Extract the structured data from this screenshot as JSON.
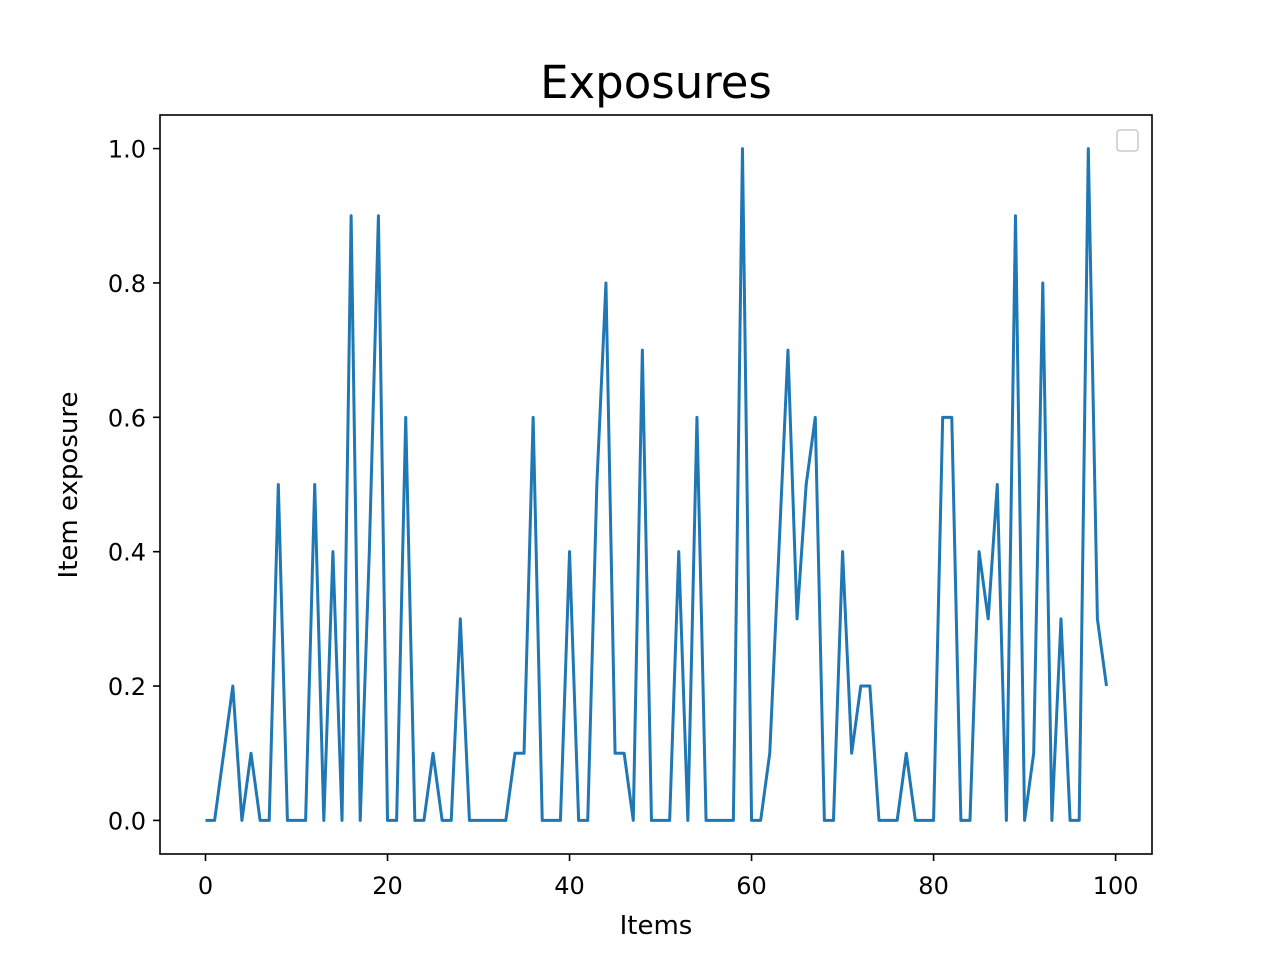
{
  "chart_data": {
    "type": "line",
    "title": "Exposures",
    "xlabel": "Items",
    "ylabel": "Item exposure",
    "xlim": [
      -5,
      104
    ],
    "ylim": [
      -0.05,
      1.05
    ],
    "xticks": [
      0,
      20,
      40,
      60,
      80,
      100
    ],
    "yticks": [
      0.0,
      0.2,
      0.4,
      0.6,
      0.8,
      1.0
    ],
    "xtick_labels": [
      "0",
      "20",
      "40",
      "60",
      "80",
      "100"
    ],
    "ytick_labels": [
      "0.0",
      "0.2",
      "0.4",
      "0.6",
      "0.8",
      "1.0"
    ],
    "grid": false,
    "legend": {
      "placement": "top-right",
      "entries": []
    },
    "series": [
      {
        "color": "#1f77b4",
        "x": [
          0,
          1,
          2,
          3,
          4,
          5,
          6,
          7,
          8,
          9,
          10,
          11,
          12,
          13,
          14,
          15,
          16,
          17,
          18,
          19,
          20,
          21,
          22,
          23,
          24,
          25,
          26,
          27,
          28,
          29,
          30,
          31,
          32,
          33,
          34,
          35,
          36,
          37,
          38,
          39,
          40,
          41,
          42,
          43,
          44,
          45,
          46,
          47,
          48,
          49,
          50,
          51,
          52,
          53,
          54,
          55,
          56,
          57,
          58,
          59,
          60,
          61,
          62,
          63,
          64,
          65,
          66,
          67,
          68,
          69,
          70,
          71,
          72,
          73,
          74,
          75,
          76,
          77,
          78,
          79,
          80,
          81,
          82,
          83,
          84,
          85,
          86,
          87,
          88,
          89,
          90,
          91,
          92,
          93,
          94,
          95,
          96,
          97,
          98,
          99
        ],
        "values": [
          0,
          0,
          0.1,
          0.2,
          0,
          0.1,
          0,
          0,
          0.5,
          0,
          0,
          0,
          0.5,
          0,
          0.4,
          0,
          0.9,
          0,
          0.4,
          0.9,
          0,
          0,
          0.6,
          0,
          0,
          0.1,
          0,
          0,
          0.3,
          0,
          0,
          0,
          0,
          0,
          0.1,
          0.1,
          0.6,
          0,
          0,
          0,
          0.4,
          0,
          0,
          0.5,
          0.8,
          0.1,
          0.1,
          0,
          0.7,
          0,
          0,
          0,
          0.4,
          0,
          0.6,
          0,
          0,
          0,
          0,
          1.0,
          0,
          0,
          0.1,
          0.4,
          0.7,
          0.3,
          0.5,
          0.6,
          0,
          0,
          0.4,
          0.1,
          0.2,
          0.2,
          0,
          0,
          0,
          0.1,
          0,
          0,
          0,
          0.6,
          0.6,
          0,
          0,
          0.4,
          0.3,
          0.5,
          0,
          0.9,
          0,
          0.1,
          0.8,
          0,
          0.3,
          0,
          0,
          1.0,
          0.3,
          0.2
        ]
      }
    ]
  }
}
